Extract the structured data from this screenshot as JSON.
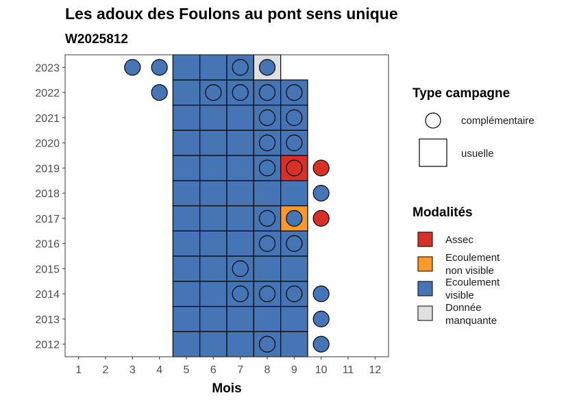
{
  "title": "Les adoux des Foulons au pont sens unique",
  "subtitle": "W2025812",
  "colors": {
    "Assec": "#d73027",
    "Ecoulement non visible": "#fe9929",
    "Ecoulement visible": "#4575b4",
    "Donnée manquante": "#e0e0e0"
  },
  "chart_data": {
    "type": "heatmap",
    "title": "Les adoux des Foulons au pont sens unique",
    "subtitle": "W2025812",
    "xlabel": "Mois",
    "ylabel": "",
    "x_ticks": [
      "1",
      "2",
      "3",
      "4",
      "5",
      "6",
      "7",
      "8",
      "9",
      "10",
      "11",
      "12"
    ],
    "y_ticks": [
      "2012",
      "2013",
      "2014",
      "2015",
      "2016",
      "2017",
      "2018",
      "2019",
      "2020",
      "2021",
      "2022",
      "2023"
    ],
    "xlim": [
      0.5,
      12.5
    ],
    "ylim": [
      2011.5,
      2023.5
    ],
    "grid": false,
    "legend_position": "right",
    "legend": {
      "shape_title": "Type campagne",
      "shapes": [
        "complémentaire",
        "usuelle"
      ],
      "fill_title": "Modalités",
      "fills": [
        {
          "key": "Assec",
          "lines": [
            "Assec"
          ]
        },
        {
          "key": "Ecoulement non visible",
          "lines": [
            "Ecoulement",
            "non visible"
          ]
        },
        {
          "key": "Ecoulement visible",
          "lines": [
            "Ecoulement",
            "visible"
          ]
        },
        {
          "key": "Donnée manquante",
          "lines": [
            "Donnée",
            "manquante"
          ]
        }
      ]
    },
    "usuelle": [
      {
        "year": 2012,
        "month": 5,
        "m": "Ecoulement visible"
      },
      {
        "year": 2012,
        "month": 6,
        "m": "Ecoulement visible"
      },
      {
        "year": 2012,
        "month": 7,
        "m": "Ecoulement visible"
      },
      {
        "year": 2012,
        "month": 8,
        "m": "Ecoulement visible"
      },
      {
        "year": 2012,
        "month": 9,
        "m": "Ecoulement visible"
      },
      {
        "year": 2013,
        "month": 5,
        "m": "Ecoulement visible"
      },
      {
        "year": 2013,
        "month": 6,
        "m": "Ecoulement visible"
      },
      {
        "year": 2013,
        "month": 7,
        "m": "Ecoulement visible"
      },
      {
        "year": 2013,
        "month": 8,
        "m": "Ecoulement visible"
      },
      {
        "year": 2013,
        "month": 9,
        "m": "Ecoulement visible"
      },
      {
        "year": 2014,
        "month": 5,
        "m": "Ecoulement visible"
      },
      {
        "year": 2014,
        "month": 6,
        "m": "Ecoulement visible"
      },
      {
        "year": 2014,
        "month": 7,
        "m": "Ecoulement visible"
      },
      {
        "year": 2014,
        "month": 8,
        "m": "Ecoulement visible"
      },
      {
        "year": 2014,
        "month": 9,
        "m": "Ecoulement visible"
      },
      {
        "year": 2015,
        "month": 5,
        "m": "Ecoulement visible"
      },
      {
        "year": 2015,
        "month": 6,
        "m": "Ecoulement visible"
      },
      {
        "year": 2015,
        "month": 7,
        "m": "Ecoulement visible"
      },
      {
        "year": 2015,
        "month": 8,
        "m": "Ecoulement visible"
      },
      {
        "year": 2015,
        "month": 9,
        "m": "Ecoulement visible"
      },
      {
        "year": 2016,
        "month": 5,
        "m": "Ecoulement visible"
      },
      {
        "year": 2016,
        "month": 6,
        "m": "Ecoulement visible"
      },
      {
        "year": 2016,
        "month": 7,
        "m": "Ecoulement visible"
      },
      {
        "year": 2016,
        "month": 8,
        "m": "Ecoulement visible"
      },
      {
        "year": 2016,
        "month": 9,
        "m": "Ecoulement visible"
      },
      {
        "year": 2017,
        "month": 5,
        "m": "Ecoulement visible"
      },
      {
        "year": 2017,
        "month": 6,
        "m": "Ecoulement visible"
      },
      {
        "year": 2017,
        "month": 7,
        "m": "Ecoulement visible"
      },
      {
        "year": 2017,
        "month": 8,
        "m": "Ecoulement visible"
      },
      {
        "year": 2017,
        "month": 9,
        "m": "Ecoulement non visible"
      },
      {
        "year": 2018,
        "month": 5,
        "m": "Ecoulement visible"
      },
      {
        "year": 2018,
        "month": 6,
        "m": "Ecoulement visible"
      },
      {
        "year": 2018,
        "month": 7,
        "m": "Ecoulement visible"
      },
      {
        "year": 2018,
        "month": 8,
        "m": "Ecoulement visible"
      },
      {
        "year": 2018,
        "month": 9,
        "m": "Ecoulement visible"
      },
      {
        "year": 2019,
        "month": 5,
        "m": "Ecoulement visible"
      },
      {
        "year": 2019,
        "month": 6,
        "m": "Ecoulement visible"
      },
      {
        "year": 2019,
        "month": 7,
        "m": "Ecoulement visible"
      },
      {
        "year": 2019,
        "month": 8,
        "m": "Ecoulement visible"
      },
      {
        "year": 2019,
        "month": 9,
        "m": "Assec"
      },
      {
        "year": 2020,
        "month": 5,
        "m": "Ecoulement visible"
      },
      {
        "year": 2020,
        "month": 6,
        "m": "Ecoulement visible"
      },
      {
        "year": 2020,
        "month": 7,
        "m": "Ecoulement visible"
      },
      {
        "year": 2020,
        "month": 8,
        "m": "Ecoulement visible"
      },
      {
        "year": 2020,
        "month": 9,
        "m": "Ecoulement visible"
      },
      {
        "year": 2021,
        "month": 5,
        "m": "Ecoulement visible"
      },
      {
        "year": 2021,
        "month": 6,
        "m": "Ecoulement visible"
      },
      {
        "year": 2021,
        "month": 7,
        "m": "Ecoulement visible"
      },
      {
        "year": 2021,
        "month": 8,
        "m": "Ecoulement visible"
      },
      {
        "year": 2021,
        "month": 9,
        "m": "Ecoulement visible"
      },
      {
        "year": 2022,
        "month": 5,
        "m": "Ecoulement visible"
      },
      {
        "year": 2022,
        "month": 6,
        "m": "Ecoulement visible"
      },
      {
        "year": 2022,
        "month": 7,
        "m": "Ecoulement visible"
      },
      {
        "year": 2022,
        "month": 8,
        "m": "Ecoulement visible"
      },
      {
        "year": 2022,
        "month": 9,
        "m": "Ecoulement visible"
      },
      {
        "year": 2023,
        "month": 5,
        "m": "Ecoulement visible"
      },
      {
        "year": 2023,
        "month": 6,
        "m": "Ecoulement visible"
      },
      {
        "year": 2023,
        "month": 7,
        "m": "Ecoulement visible"
      },
      {
        "year": 2023,
        "month": 8,
        "m": "Donnée manquante"
      }
    ],
    "complementaire": [
      {
        "year": 2023,
        "month": 3,
        "m": "Ecoulement visible"
      },
      {
        "year": 2023,
        "month": 4,
        "m": "Ecoulement visible"
      },
      {
        "year": 2023,
        "month": 7,
        "m": "Ecoulement visible"
      },
      {
        "year": 2023,
        "month": 8,
        "m": "Ecoulement visible"
      },
      {
        "year": 2022,
        "month": 4,
        "m": "Ecoulement visible"
      },
      {
        "year": 2022,
        "month": 6,
        "m": "Ecoulement visible"
      },
      {
        "year": 2022,
        "month": 7,
        "m": "Ecoulement visible"
      },
      {
        "year": 2022,
        "month": 8,
        "m": "Ecoulement visible"
      },
      {
        "year": 2022,
        "month": 9,
        "m": "Ecoulement visible"
      },
      {
        "year": 2021,
        "month": 8,
        "m": "Ecoulement visible"
      },
      {
        "year": 2021,
        "month": 9,
        "m": "Ecoulement visible"
      },
      {
        "year": 2020,
        "month": 8,
        "m": "Ecoulement visible"
      },
      {
        "year": 2020,
        "month": 9,
        "m": "Ecoulement visible"
      },
      {
        "year": 2019,
        "month": 8,
        "m": "Ecoulement visible"
      },
      {
        "year": 2019,
        "month": 9,
        "m": "Assec"
      },
      {
        "year": 2019,
        "month": 10,
        "m": "Assec"
      },
      {
        "year": 2018,
        "month": 10,
        "m": "Ecoulement visible"
      },
      {
        "year": 2017,
        "month": 8,
        "m": "Ecoulement visible"
      },
      {
        "year": 2017,
        "month": 9,
        "m": "Ecoulement visible"
      },
      {
        "year": 2017,
        "month": 10,
        "m": "Assec"
      },
      {
        "year": 2016,
        "month": 8,
        "m": "Ecoulement visible"
      },
      {
        "year": 2016,
        "month": 9,
        "m": "Ecoulement visible"
      },
      {
        "year": 2015,
        "month": 7,
        "m": "Ecoulement visible"
      },
      {
        "year": 2014,
        "month": 7,
        "m": "Ecoulement visible"
      },
      {
        "year": 2014,
        "month": 8,
        "m": "Ecoulement visible"
      },
      {
        "year": 2014,
        "month": 9,
        "m": "Ecoulement visible"
      },
      {
        "year": 2014,
        "month": 10,
        "m": "Ecoulement visible"
      },
      {
        "year": 2013,
        "month": 10,
        "m": "Ecoulement visible"
      },
      {
        "year": 2012,
        "month": 8,
        "m": "Ecoulement visible"
      },
      {
        "year": 2012,
        "month": 10,
        "m": "Ecoulement visible"
      }
    ]
  }
}
